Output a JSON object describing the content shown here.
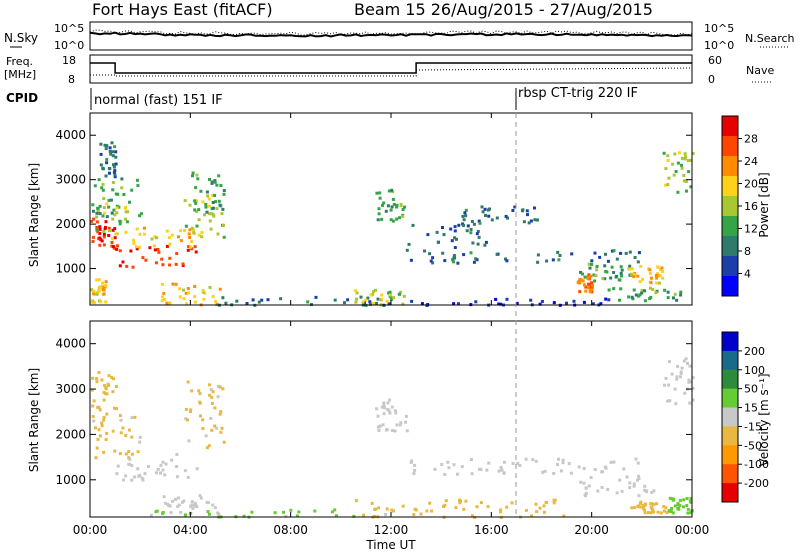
{
  "header": {
    "title": "Fort Hays East (fitACF)",
    "beam_label": "Beam 15 26/Aug/2015 - 27/Aug/2015"
  },
  "top_panels": {
    "nsky": {
      "left_label": "N.Sky",
      "right_label": "N.Search",
      "tick_top": "10^5",
      "tick_bottom": "10^0"
    },
    "freq": {
      "left_label_line1": "Freq.",
      "left_label_line2": "[MHz]",
      "left_ticks": [
        "18",
        "8"
      ],
      "right_label": "Nave",
      "right_ticks": [
        "60",
        "0"
      ]
    },
    "cpid": {
      "label": "CPID",
      "mode_1": "normal (fast) 151 IF",
      "mode_2": "rbsp CT-trig 220 IF"
    }
  },
  "colors": {
    "power_scale": [
      "#0000ff",
      "#1a3fa8",
      "#2e7a6b",
      "#34a447",
      "#a8c733",
      "#ffd11a",
      "#ff8c00",
      "#ff4500",
      "#e60000"
    ],
    "velocity_scale": [
      "#0000cc",
      "#1a6b8a",
      "#2e8b3c",
      "#66cc33",
      "#c8c8c8",
      "#e8b840",
      "#ff9900",
      "#ff5500",
      "#e60000"
    ],
    "ground_scatter": "#bebebe"
  },
  "chart_data": [
    {
      "type": "heatmap",
      "name": "power",
      "ylabel": "Slant Range [km]",
      "xlabel": "Time UT",
      "x_ticks": [
        "00:00",
        "04:00",
        "08:00",
        "12:00",
        "16:00",
        "20:00",
        "00:00"
      ],
      "x_range_hours": [
        0,
        24
      ],
      "y_ticks": [
        1000,
        2000,
        3000,
        4000
      ],
      "ylim": [
        180,
        4500
      ],
      "colorbar": {
        "label": "Power [dB]",
        "ticks": [
          "4",
          "8",
          "12",
          "16",
          "20",
          "24",
          "28"
        ],
        "range": [
          0,
          32
        ]
      },
      "patches": [
        {
          "t0": 0.0,
          "t1": 1.0,
          "r0": 1450,
          "r1": 2150,
          "level": 28
        },
        {
          "t0": 0.2,
          "t1": 1.5,
          "r0": 1700,
          "r1": 2500,
          "level": 16
        },
        {
          "t0": 0.0,
          "t1": 2.0,
          "r0": 2200,
          "r1": 3100,
          "level": 12
        },
        {
          "t0": 0.3,
          "t1": 1.0,
          "r0": 3100,
          "r1": 3900,
          "level": 8
        },
        {
          "t0": 1.0,
          "t1": 4.3,
          "r0": 1050,
          "r1": 1550,
          "level": 28
        },
        {
          "t0": 1.3,
          "t1": 4.5,
          "r0": 1500,
          "r1": 2000,
          "level": 20
        },
        {
          "t0": 3.7,
          "t1": 5.3,
          "r0": 1700,
          "r1": 2700,
          "level": 16
        },
        {
          "t0": 4.0,
          "t1": 5.3,
          "r0": 2300,
          "r1": 3200,
          "level": 12
        },
        {
          "t0": 2.8,
          "t1": 5.2,
          "r0": 200,
          "r1": 700,
          "level": 20
        },
        {
          "t0": 0.0,
          "t1": 0.6,
          "r0": 250,
          "r1": 800,
          "level": 20
        },
        {
          "t0": 5.0,
          "t1": 12.0,
          "r0": 200,
          "r1": 400,
          "level": 8
        },
        {
          "t0": 10.5,
          "t1": 12.5,
          "r0": 200,
          "r1": 550,
          "level": 16
        },
        {
          "t0": 11.3,
          "t1": 12.6,
          "r0": 2100,
          "r1": 2800,
          "level": 12
        },
        {
          "t0": 12.6,
          "t1": 15.8,
          "r0": 1500,
          "r1": 2100,
          "level": 8
        },
        {
          "t0": 14.8,
          "t1": 17.8,
          "r0": 2050,
          "r1": 2450,
          "level": 8
        },
        {
          "t0": 12.5,
          "t1": 22.0,
          "r0": 1150,
          "r1": 1450,
          "level": 8
        },
        {
          "t0": 19.5,
          "t1": 21.5,
          "r0": 750,
          "r1": 1150,
          "level": 12
        },
        {
          "t0": 21.3,
          "t1": 22.8,
          "r0": 650,
          "r1": 1100,
          "level": 20
        },
        {
          "t0": 19.4,
          "t1": 20.0,
          "r0": 500,
          "r1": 900,
          "level": 24
        },
        {
          "t0": 20.5,
          "t1": 23.8,
          "r0": 300,
          "r1": 600,
          "level": 12
        },
        {
          "t0": 22.8,
          "t1": 24.0,
          "r0": 2700,
          "r1": 3700,
          "level": 16
        },
        {
          "t0": 12.0,
          "t1": 21.0,
          "r0": 200,
          "r1": 350,
          "level": 4
        }
      ]
    },
    {
      "type": "heatmap",
      "name": "velocity",
      "ylabel": "Slant Range [km]",
      "xlabel": "Time UT",
      "x_ticks": [
        "00:00",
        "04:00",
        "08:00",
        "12:00",
        "16:00",
        "20:00",
        "00:00"
      ],
      "x_range_hours": [
        0,
        24
      ],
      "y_ticks": [
        1000,
        2000,
        3000,
        4000
      ],
      "ylim": [
        180,
        4500
      ],
      "colorbar": {
        "label": "Velocity [m s⁻¹]",
        "ticks": [
          "200",
          "100",
          "50",
          "15",
          "-15",
          "-50",
          "-100",
          "-200"
        ],
        "range": [
          -250,
          250
        ]
      },
      "patches": [
        {
          "t0": 0.0,
          "t1": 2.0,
          "r0": 1500,
          "r1": 2500,
          "level": -30
        },
        {
          "t0": 1.0,
          "t1": 4.3,
          "r0": 1000,
          "r1": 1600,
          "level": 0
        },
        {
          "t0": 0.0,
          "t1": 1.0,
          "r0": 2400,
          "r1": 3400,
          "level": -30
        },
        {
          "t0": 3.7,
          "t1": 5.3,
          "r0": 1700,
          "r1": 3200,
          "level": -30
        },
        {
          "t0": 2.8,
          "t1": 5.2,
          "r0": 300,
          "r1": 700,
          "level": 20
        },
        {
          "t0": 2.0,
          "t1": 12.0,
          "r0": 200,
          "r1": 380,
          "level": 30
        },
        {
          "t0": 10.5,
          "t1": 19.0,
          "r0": 200,
          "r1": 600,
          "level": -60
        },
        {
          "t0": 11.3,
          "t1": 12.6,
          "r0": 2100,
          "r1": 2800,
          "level": 0
        },
        {
          "t0": 12.6,
          "t1": 22.0,
          "r0": 1150,
          "r1": 1500,
          "level": 0
        },
        {
          "t0": 19.5,
          "t1": 22.5,
          "r0": 650,
          "r1": 1150,
          "level": 0
        },
        {
          "t0": 21.5,
          "t1": 23.0,
          "r0": 300,
          "r1": 550,
          "level": -60
        },
        {
          "t0": 23.0,
          "t1": 24.0,
          "r0": 300,
          "r1": 650,
          "level": 40
        },
        {
          "t0": 22.8,
          "t1": 24.0,
          "r0": 2700,
          "r1": 3700,
          "level": 0
        }
      ]
    }
  ]
}
